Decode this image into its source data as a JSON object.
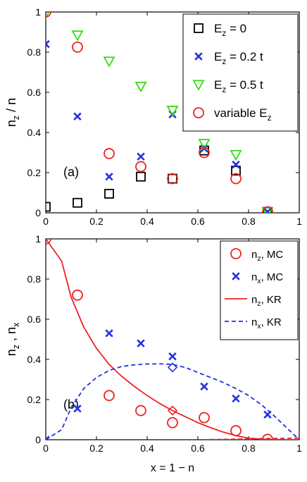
{
  "figure": {
    "xlabel_shared": "x = 1 − n"
  },
  "chart_data": [
    {
      "type": "scatter",
      "panel_label": "(a)",
      "ylabel": {
        "base": "n",
        "sub": "z",
        "rest": " / n"
      },
      "xlim": [
        0,
        1
      ],
      "ylim": [
        0,
        1
      ],
      "xticks": [
        "0",
        "0.2",
        "0.4",
        "0.6",
        "0.8",
        "1"
      ],
      "xtick_values": [
        0,
        0.2,
        0.4,
        0.6,
        0.8,
        1
      ],
      "yticks": [
        "0",
        "0.2",
        "0.4",
        "0.6",
        "0.8",
        "1"
      ],
      "ytick_values": [
        0,
        0.2,
        0.4,
        0.6,
        0.8,
        1
      ],
      "grid": false,
      "legend_placement": "top-right",
      "series": [
        {
          "id": "ez0",
          "legend": {
            "base": "E",
            "sub": "z",
            "rest": " = 0"
          },
          "marker": "square",
          "color": "#000000",
          "x": [
            0,
            0.125,
            0.25,
            0.375,
            0.5,
            0.625,
            0.75,
            0.875
          ],
          "y": [
            0.03,
            0.05,
            0.095,
            0.18,
            0.17,
            0.31,
            0.21,
            0.005
          ]
        },
        {
          "id": "ez02",
          "legend": {
            "base": "E",
            "sub": "z",
            "rest": " = 0.2 t"
          },
          "marker": "x",
          "color": "#2233dd",
          "x": [
            0,
            0.125,
            0.25,
            0.375,
            0.5,
            0.625,
            0.75,
            0.875
          ],
          "y": [
            0.84,
            0.48,
            0.18,
            0.28,
            0.49,
            0.32,
            0.24,
            0.005
          ]
        },
        {
          "id": "ez05",
          "legend": {
            "base": "E",
            "sub": "z",
            "rest": " = 0.5 t"
          },
          "marker": "triangle-down",
          "color": "#33dd11",
          "x": [
            0,
            0.125,
            0.25,
            0.375,
            0.5,
            0.625,
            0.75,
            0.875
          ],
          "y": [
            0.995,
            0.885,
            0.755,
            0.63,
            0.51,
            0.345,
            0.29,
            0.005
          ]
        },
        {
          "id": "ezvar",
          "legend": {
            "base": "variable E",
            "sub": "z",
            "rest": ""
          },
          "marker": "circle",
          "color": "#ee2222",
          "x": [
            0,
            0.125,
            0.25,
            0.375,
            0.5,
            0.625,
            0.75,
            0.875
          ],
          "y": [
            1.0,
            0.825,
            0.295,
            0.23,
            0.17,
            0.3,
            0.17,
            0.005
          ]
        }
      ]
    },
    {
      "type": "line",
      "panel_label": "(b)",
      "ylabel": {
        "base": "n",
        "sub": "z",
        "rest": " , n",
        "sub2": "x"
      },
      "xlabel": "x = 1 − n",
      "xlim": [
        0,
        1
      ],
      "ylim": [
        0,
        1
      ],
      "xticks": [
        "0",
        "0.2",
        "0.4",
        "0.6",
        "0.8",
        "1"
      ],
      "xtick_values": [
        0,
        0.2,
        0.4,
        0.6,
        0.8,
        1
      ],
      "yticks": [
        "0",
        "0.2",
        "0.4",
        "0.6",
        "0.8",
        "1"
      ],
      "ytick_values": [
        0,
        0.2,
        0.4,
        0.6,
        0.8,
        1
      ],
      "grid": false,
      "legend_placement": "top-right",
      "series": [
        {
          "id": "nzmc",
          "legend": {
            "base": "n",
            "sub": "z",
            "rest": ", MC"
          },
          "marker": "circle",
          "color": "#ee2222",
          "x": [
            0,
            0.125,
            0.25,
            0.375,
            0.5,
            0.625,
            0.75,
            0.875
          ],
          "y": [
            1.0,
            0.72,
            0.22,
            0.145,
            0.085,
            0.11,
            0.045,
            0.002
          ]
        },
        {
          "id": "nxmc",
          "legend": {
            "base": "n",
            "sub": "x",
            "rest": ", MC"
          },
          "marker": "x",
          "color": "#2233dd",
          "x": [
            0,
            0.125,
            0.25,
            0.375,
            0.5,
            0.625,
            0.75,
            0.875
          ],
          "y": [
            0.0,
            0.155,
            0.53,
            0.48,
            0.415,
            0.265,
            0.205,
            0.125
          ]
        },
        {
          "id": "nzkr",
          "legend": {
            "base": "n",
            "sub": "z",
            "rest": ", KR"
          },
          "style": "solid",
          "color": "#ee2222",
          "x": [
            0,
            0.0625,
            0.1,
            0.15,
            0.2,
            0.25,
            0.3,
            0.35,
            0.4,
            0.45,
            0.5,
            0.55,
            0.6,
            0.65,
            0.7,
            0.75,
            0.8,
            0.85,
            0.9,
            0.95,
            1.0
          ],
          "y": [
            1.0,
            0.89,
            0.71,
            0.56,
            0.455,
            0.375,
            0.315,
            0.265,
            0.22,
            0.18,
            0.145,
            0.115,
            0.085,
            0.06,
            0.038,
            0.02,
            0.008,
            0.003,
            0.001,
            0.0,
            0.0
          ]
        },
        {
          "id": "nxkr",
          "legend": {
            "base": "n",
            "sub": "x",
            "rest": ", KR"
          },
          "style": "dashed",
          "color": "#2233dd",
          "x": [
            0,
            0.05,
            0.0625,
            0.08,
            0.1,
            0.15,
            0.2,
            0.25,
            0.3,
            0.35,
            0.4,
            0.45,
            0.5,
            0.55,
            0.6,
            0.65,
            0.7,
            0.75,
            0.8,
            0.85,
            0.9,
            0.95,
            1.0
          ],
          "y": [
            0.0,
            0.04,
            0.05,
            0.1,
            0.16,
            0.255,
            0.31,
            0.345,
            0.365,
            0.373,
            0.377,
            0.378,
            0.375,
            0.36,
            0.335,
            0.31,
            0.285,
            0.255,
            0.22,
            0.175,
            0.12,
            0.06,
            0.0
          ]
        },
        {
          "id": "nzkr_tail",
          "legend": null,
          "style": "dashed",
          "color": "#ee2222",
          "x": [
            0.62,
            0.75,
            0.88,
            1.0
          ],
          "y": [
            0.0,
            0.003,
            0.006,
            0.008
          ]
        }
      ],
      "highlights": [
        {
          "marker": "diamond",
          "color": "#ee2222",
          "x": 0.5,
          "y": 0.145
        },
        {
          "marker": "diamond",
          "color": "#2233dd",
          "x": 0.5,
          "y": 0.36
        }
      ]
    }
  ]
}
